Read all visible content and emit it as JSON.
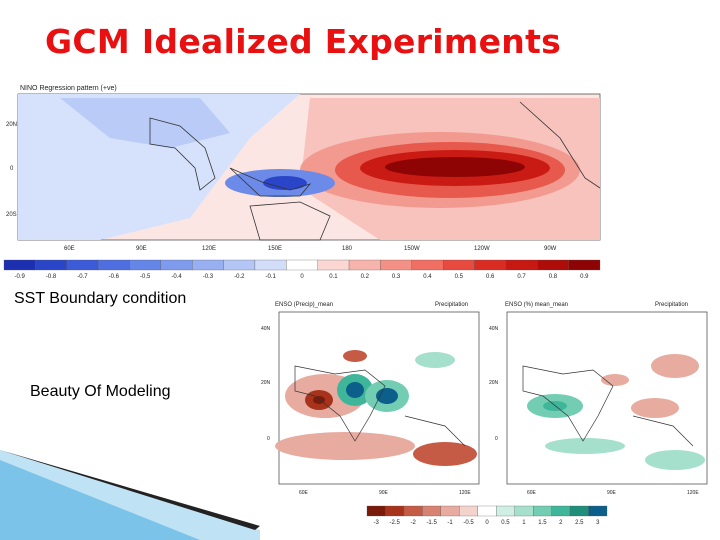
{
  "slide": {
    "title": "GCM Idealized Experiments",
    "captions": {
      "sst_boundary": "SST Boundary condition",
      "beauty": "Beauty Of Modeling"
    }
  },
  "top_map": {
    "title": "NINO Regression pattern (+ve)",
    "lat_labels": [
      "20N",
      "0",
      "20S"
    ],
    "lon_labels": [
      "60E",
      "90E",
      "120E",
      "150E",
      "180",
      "150W",
      "120W",
      "90W"
    ],
    "colorbar": {
      "ticks": [
        "-0.9",
        "-0.8",
        "-0.7",
        "-0.6",
        "-0.5",
        "-0.4",
        "-0.3",
        "-0.2",
        "-0.1",
        "0",
        "0.1",
        "0.2",
        "0.3",
        "0.4",
        "0.5",
        "0.6",
        "0.7",
        "0.8",
        "0.9"
      ],
      "colors": [
        "#1c2fb0",
        "#2a45c8",
        "#3b5bd8",
        "#4f6fe0",
        "#6585e8",
        "#7e9bee",
        "#98b0f2",
        "#b4c6f6",
        "#d2def9",
        "#ffffff",
        "#fbd6d2",
        "#f7b4ac",
        "#f49186",
        "#f06e62",
        "#e84a40",
        "#db2c24",
        "#c81812",
        "#ad0c08",
        "#8e0404"
      ]
    }
  },
  "bottom_maps": {
    "left": {
      "title": "ENSO (Precip)_mean",
      "right_title": "Precipitation",
      "lat_labels": [
        "40N",
        "20N",
        "0"
      ],
      "lon_labels": [
        "60E",
        "90E",
        "120E"
      ]
    },
    "right": {
      "title": "ENSO (%) mean_mean",
      "right_title": "Precipitation",
      "lat_labels": [
        "40N",
        "20N",
        "0"
      ],
      "lon_labels": [
        "60E",
        "90E",
        "120E"
      ]
    },
    "colorbar": {
      "ticks": [
        "-3",
        "-2.5",
        "-2",
        "-1.5",
        "-1",
        "-0.5",
        "0",
        "0.5",
        "1",
        "1.5",
        "2",
        "2.5",
        "3"
      ],
      "colors": [
        "#7a1a0a",
        "#a8331c",
        "#c55a45",
        "#d88272",
        "#e8aba0",
        "#f4d3cd",
        "#ffffff",
        "#cfeee4",
        "#a5e0cc",
        "#72cdb3",
        "#3fb59a",
        "#1f8f7c",
        "#0b5f8a"
      ]
    }
  }
}
